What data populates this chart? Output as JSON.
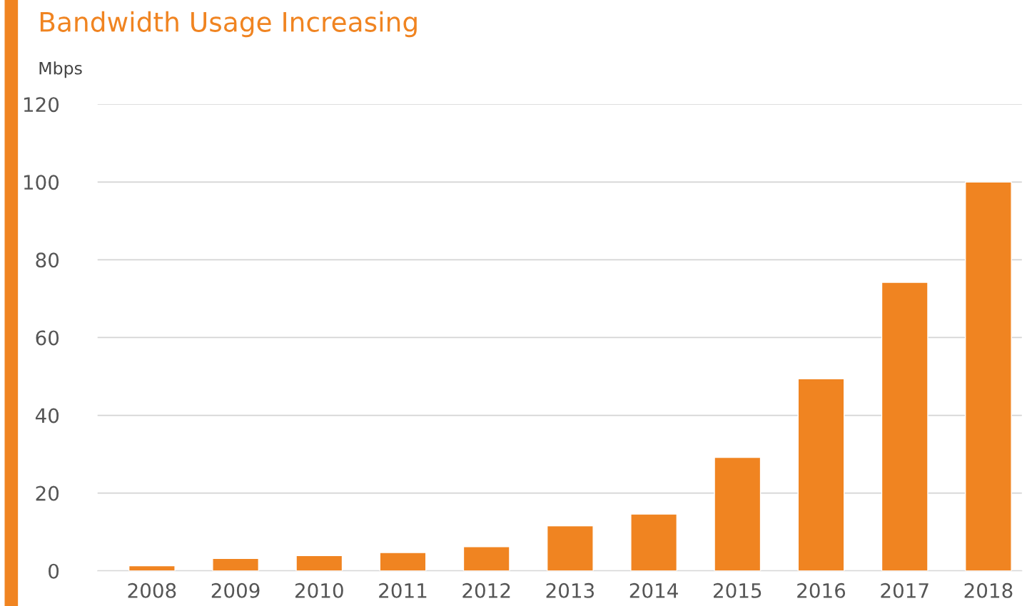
{
  "chart_data": {
    "type": "bar",
    "title": "Bandwidth Usage Increasing",
    "ylabel": "Mbps",
    "categories": [
      "2008",
      "2009",
      "2010",
      "2011",
      "2012",
      "2013",
      "2014",
      "2015",
      "2016",
      "2017",
      "2018"
    ],
    "values": [
      1.3,
      3.2,
      3.9,
      4.7,
      6.2,
      11.6,
      14.6,
      29.2,
      49.4,
      74.2,
      100
    ],
    "color": "#f08421",
    "ylim": [
      0,
      120
    ],
    "yticks": [
      0,
      20,
      40,
      60,
      80,
      100,
      120
    ],
    "grid": "y"
  }
}
